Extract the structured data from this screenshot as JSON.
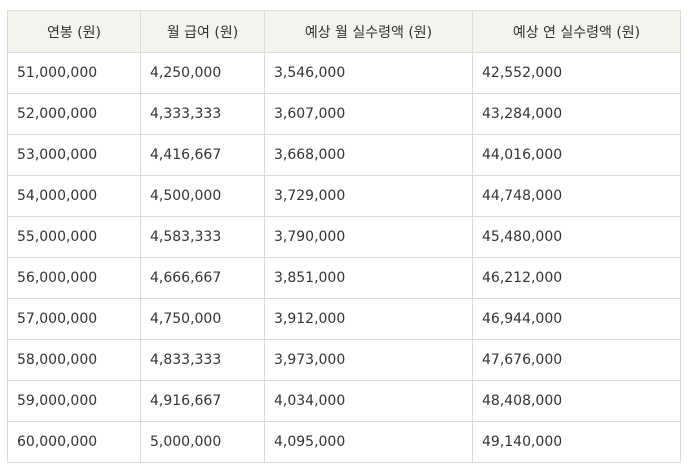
{
  "table": {
    "headers": [
      "연봉 (원)",
      "월 급여 (원)",
      "예상 월 실수령액 (원)",
      "예상 연 실수령액 (원)"
    ],
    "rows": [
      [
        "51,000,000",
        "4,250,000",
        "3,546,000",
        "42,552,000"
      ],
      [
        "52,000,000",
        "4,333,333",
        "3,607,000",
        "43,284,000"
      ],
      [
        "53,000,000",
        "4,416,667",
        "3,668,000",
        "44,016,000"
      ],
      [
        "54,000,000",
        "4,500,000",
        "3,729,000",
        "44,748,000"
      ],
      [
        "55,000,000",
        "4,583,333",
        "3,790,000",
        "45,480,000"
      ],
      [
        "56,000,000",
        "4,666,667",
        "3,851,000",
        "46,212,000"
      ],
      [
        "57,000,000",
        "4,750,000",
        "3,912,000",
        "46,944,000"
      ],
      [
        "58,000,000",
        "4,833,333",
        "3,973,000",
        "47,676,000"
      ],
      [
        "59,000,000",
        "4,916,667",
        "4,034,000",
        "48,408,000"
      ],
      [
        "60,000,000",
        "5,000,000",
        "4,095,000",
        "49,140,000"
      ]
    ]
  }
}
